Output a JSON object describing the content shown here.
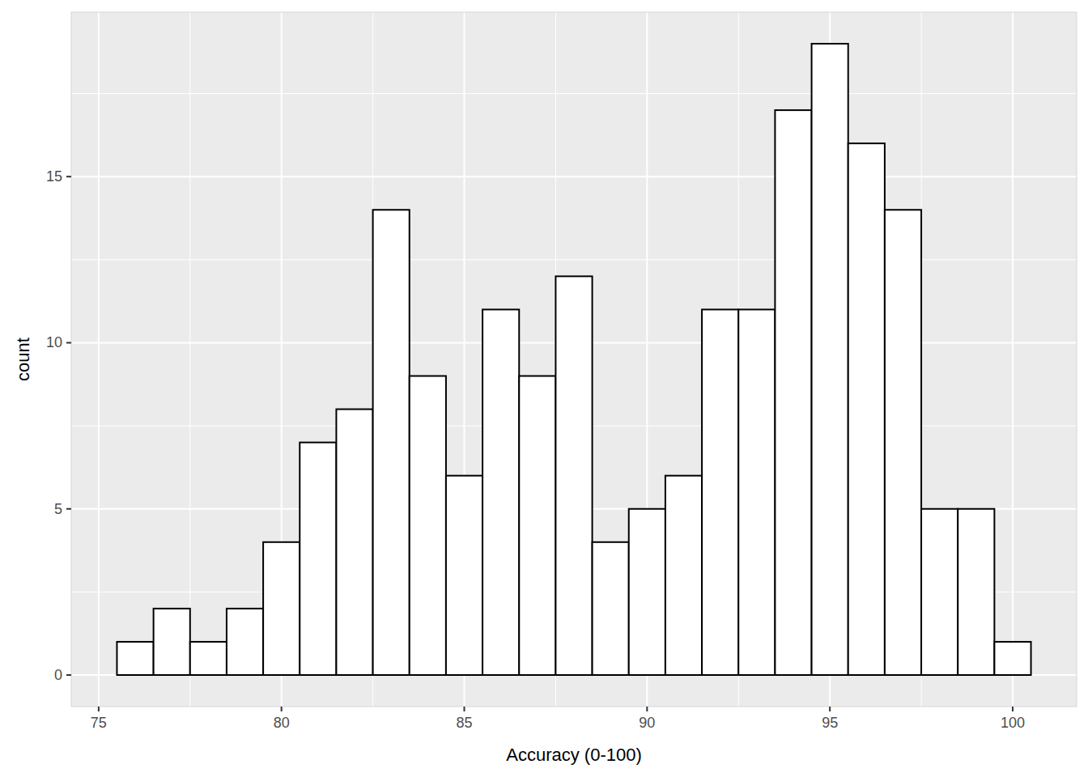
{
  "chart_data": {
    "type": "histogram",
    "x_label": "Accuracy (0-100)",
    "y_label": "count",
    "bins": [
      75.5,
      76.5,
      77.5,
      78.5,
      79.5,
      80.5,
      81.5,
      82.5,
      83.5,
      84.5,
      85.5,
      86.5,
      87.5,
      88.5,
      89.5,
      90.5,
      91.5,
      92.5,
      93.5,
      94.5,
      95.5,
      96.5,
      97.5,
      98.5,
      99.5,
      100.5
    ],
    "values": [
      1,
      2,
      1,
      2,
      4,
      7,
      8,
      14,
      9,
      6,
      11,
      9,
      12,
      4,
      5,
      6,
      11,
      11,
      17,
      19,
      16,
      14,
      5,
      5,
      1
    ],
    "color": "#ffffff",
    "xlim": [
      74.25,
      101.75
    ],
    "ylim": [
      -0.95,
      19.95
    ],
    "xticks": [
      75,
      80,
      85,
      90,
      95,
      100
    ],
    "yticks": [
      0,
      5,
      10,
      15
    ],
    "grid": true
  }
}
